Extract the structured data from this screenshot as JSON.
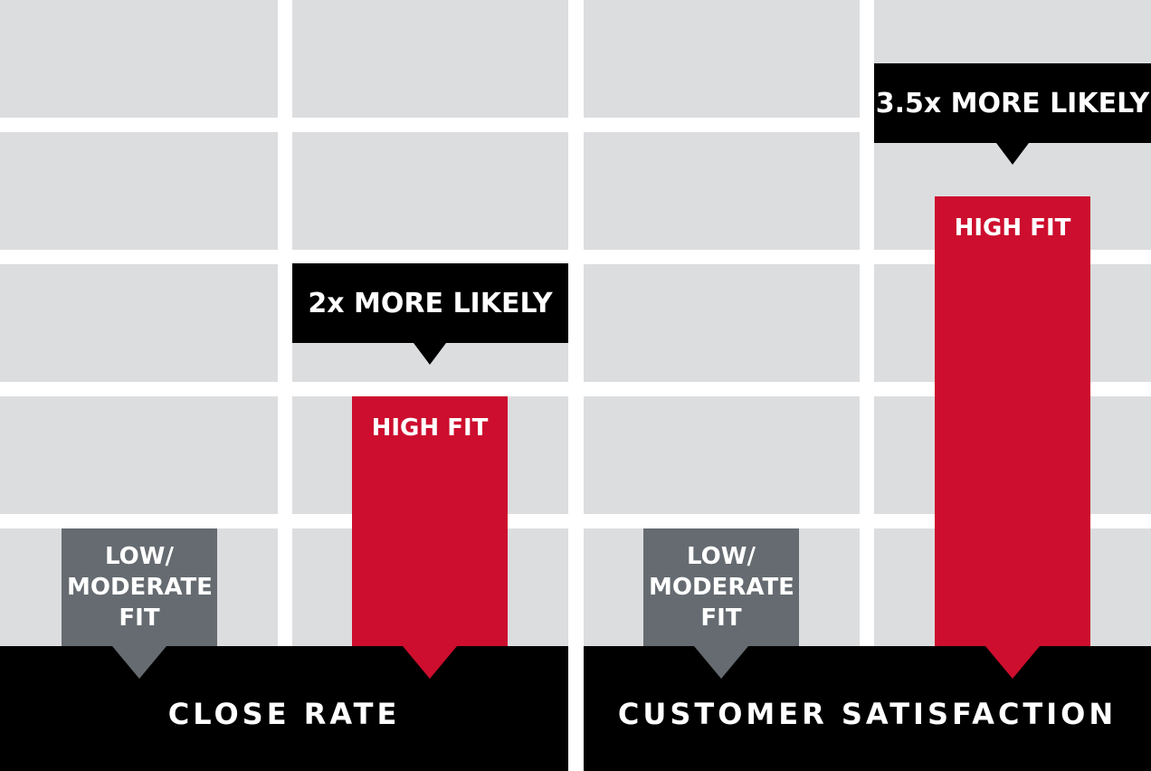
{
  "colors": {
    "background": "#ffffff",
    "grid_cell": "#dcdddf",
    "low_fit": "#656b70",
    "high_fit": "#cd0e2e",
    "label_block": "#000000",
    "text": "#ffffff"
  },
  "chart_data": [
    {
      "type": "bar",
      "categories": [
        "LOW/ MODERATE FIT",
        "HIGH FIT"
      ],
      "values": [
        1,
        2
      ],
      "xlabel": "CLOSE RATE",
      "annotations": [
        {
          "category": "HIGH FIT",
          "text": "2x MORE LIKELY"
        }
      ],
      "grid": true
    },
    {
      "type": "bar",
      "categories": [
        "LOW/ MODERATE FIT",
        "HIGH FIT"
      ],
      "values": [
        1,
        3.5
      ],
      "xlabel": "CUSTOMER SATISFACTION",
      "annotations": [
        {
          "category": "HIGH FIT",
          "text": "3.5x MORE LIKELY"
        }
      ],
      "grid": true
    }
  ]
}
